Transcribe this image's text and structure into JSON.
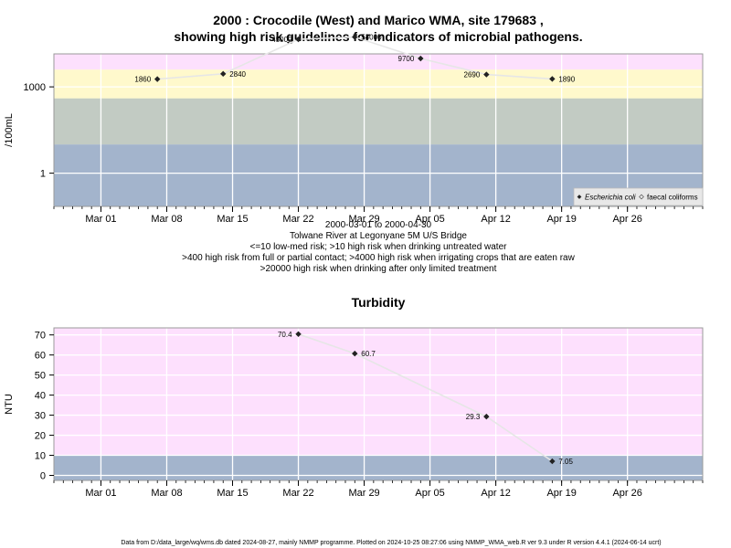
{
  "chart_data": [
    {
      "type": "line",
      "title_lines": [
        "2000 : Crocodile (West) and Marico WMA, site 179683 ,",
        "showing high risk guidelines for indicators of microbial pathogens."
      ],
      "ylabel": "/100mL",
      "yscale": "log",
      "ylim": [
        0.07,
        14000
      ],
      "yticks": [
        1,
        1000
      ],
      "ytick_labels": [
        "1",
        "1000"
      ],
      "xlim": [
        "2000-02-25",
        "2000-05-04"
      ],
      "xticks": [
        "2000-03-01",
        "2000-03-08",
        "2000-03-15",
        "2000-03-22",
        "2000-03-29",
        "2000-04-05",
        "2000-04-12",
        "2000-04-19",
        "2000-04-26"
      ],
      "xtick_labels": [
        "Mar 01",
        "Mar 08",
        "Mar 15",
        "Mar 22",
        "Mar 29",
        "Apr 05",
        "Apr 12",
        "Apr 19",
        "Apr 26"
      ],
      "grid": true,
      "bands": [
        {
          "from": 0.07,
          "to": 10,
          "color": "#a3b4cc"
        },
        {
          "from": 10,
          "to": 400,
          "color": "#c2cbc3"
        },
        {
          "from": 400,
          "to": 4000,
          "color": "#fff9cc"
        },
        {
          "from": 4000,
          "to": 20000,
          "color": "#fde0fd"
        },
        {
          "from": 20000,
          "to": 14000,
          "color": "#fbb6c0"
        }
      ],
      "series": [
        {
          "name": "Escherichia coli",
          "line_color": "#e6e6e6",
          "marker_color": "#222222",
          "x": [
            "2000-03-07",
            "2000-03-14",
            "2000-03-22",
            "2000-03-28",
            "2000-04-04",
            "2000-04-11",
            "2000-04-18"
          ],
          "values": [
            1860,
            2840,
            45000,
            54000,
            9700,
            2690,
            1890
          ],
          "labels": [
            "1860",
            "2840",
            "45000",
            "54000",
            "9700",
            "2690",
            "1890"
          ],
          "label_side": [
            "left",
            "right",
            "left",
            "right",
            "left",
            "left",
            "right"
          ]
        }
      ],
      "legend": {
        "position": "bottom-right",
        "entries": [
          "Escherichia coli",
          "faecal coliforms"
        ]
      },
      "subtitle_lines": [
        "2000-03-01 to 2000-04-30",
        "Tolwane River at Legonyane 5M U/S Bridge",
        "<=10 low-med risk; >10 high risk when drinking untreated water",
        ">400 high risk from full or partial contact; >4000 high risk when irrigating crops that are eaten raw",
        ">20000 high risk when drinking after only limited treatment"
      ]
    },
    {
      "type": "line",
      "title": "Turbidity",
      "ylabel": "NTU",
      "ylim": [
        -2.5,
        73.5
      ],
      "yticks": [
        0,
        10,
        20,
        30,
        40,
        50,
        60,
        70
      ],
      "ytick_labels": [
        "0",
        "10",
        "20",
        "30",
        "40",
        "50",
        "60",
        "70"
      ],
      "xlim": [
        "2000-02-25",
        "2000-05-04"
      ],
      "xticks": [
        "2000-03-01",
        "2000-03-08",
        "2000-03-15",
        "2000-03-22",
        "2000-03-29",
        "2000-04-05",
        "2000-04-12",
        "2000-04-19",
        "2000-04-26"
      ],
      "xtick_labels": [
        "Mar 01",
        "Mar 08",
        "Mar 15",
        "Mar 22",
        "Mar 29",
        "Apr 05",
        "Apr 12",
        "Apr 19",
        "Apr 26"
      ],
      "grid": true,
      "bands": [
        {
          "from": -2.5,
          "to": 10,
          "color": "#a3b4cc"
        },
        {
          "from": 10,
          "to": 73.5,
          "color": "#fde0fd"
        }
      ],
      "series": [
        {
          "line_color": "#e6e6e6",
          "marker_color": "#222222",
          "x": [
            "2000-03-22",
            "2000-03-28",
            "2000-04-11",
            "2000-04-18"
          ],
          "values": [
            70.4,
            60.7,
            29.3,
            7.05
          ],
          "labels": [
            "70.4",
            "60.7",
            "29.3",
            "7.05"
          ],
          "label_side": [
            "left",
            "right",
            "left",
            "right"
          ]
        }
      ]
    }
  ],
  "footer": "Data from D:/data_large/wq/wms.db dated 2024-08-27, mainly NMMP programme. Plotted on 2024-10-25 08:27:06 using NMMP_WMA_web.R ver 9.3 under R version 4.4.1 (2024-06-14 ucrt)"
}
